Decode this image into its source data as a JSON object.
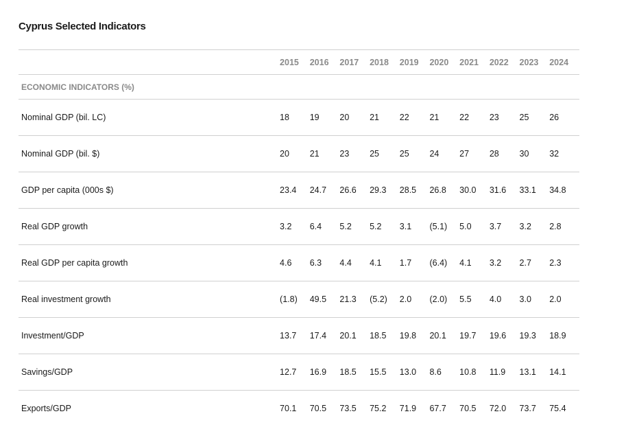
{
  "title": "Cyprus Selected Indicators",
  "years": [
    "2015",
    "2016",
    "2017",
    "2018",
    "2019",
    "2020",
    "2021",
    "2022",
    "2023",
    "2024"
  ],
  "section_label": "ECONOMIC INDICATORS (%)",
  "rows": [
    {
      "label": "Nominal GDP (bil. LC)",
      "values": [
        "18",
        "19",
        "20",
        "21",
        "22",
        "21",
        "22",
        "23",
        "25",
        "26"
      ]
    },
    {
      "label": "Nominal GDP (bil. $)",
      "values": [
        "20",
        "21",
        "23",
        "25",
        "25",
        "24",
        "27",
        "28",
        "30",
        "32"
      ]
    },
    {
      "label": "GDP per capita (000s $)",
      "values": [
        "23.4",
        "24.7",
        "26.6",
        "29.3",
        "28.5",
        "26.8",
        "30.0",
        "31.6",
        "33.1",
        "34.8"
      ]
    },
    {
      "label": "Real GDP growth",
      "values": [
        "3.2",
        "6.4",
        "5.2",
        "5.2",
        "3.1",
        "(5.1)",
        "5.0",
        "3.7",
        "3.2",
        "2.8"
      ]
    },
    {
      "label": "Real GDP per capita growth",
      "values": [
        "4.6",
        "6.3",
        "4.4",
        "4.1",
        "1.7",
        "(6.4)",
        "4.1",
        "3.2",
        "2.7",
        "2.3"
      ]
    },
    {
      "label": "Real investment growth",
      "values": [
        "(1.8)",
        "49.5",
        "21.3",
        "(5.2)",
        "2.0",
        "(2.0)",
        "5.5",
        "4.0",
        "3.0",
        "2.0"
      ]
    },
    {
      "label": "Investment/GDP",
      "values": [
        "13.7",
        "17.4",
        "20.1",
        "18.5",
        "19.8",
        "20.1",
        "19.7",
        "19.6",
        "19.3",
        "18.9"
      ]
    },
    {
      "label": "Savings/GDP",
      "values": [
        "12.7",
        "16.9",
        "18.5",
        "15.5",
        "13.0",
        "8.6",
        "10.8",
        "11.9",
        "13.1",
        "14.1"
      ]
    },
    {
      "label": "Exports/GDP",
      "values": [
        "70.1",
        "70.5",
        "73.5",
        "75.2",
        "71.9",
        "67.7",
        "70.5",
        "72.0",
        "73.7",
        "75.4"
      ]
    }
  ]
}
